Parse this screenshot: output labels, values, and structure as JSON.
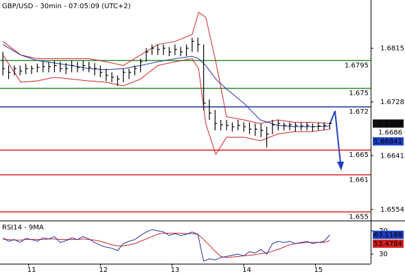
{
  "chart_data": {
    "type": "ohlc",
    "title": "GBP/USD - 30min - 07:05:09 (UTC+2)",
    "bar_color": "#000000",
    "x": [
      10.64,
      10.72,
      10.8,
      10.88,
      10.96,
      11.04,
      11.12,
      11.2,
      11.28,
      11.36,
      11.44,
      11.52,
      11.6,
      11.68,
      11.76,
      11.84,
      11.92,
      12.0,
      12.08,
      12.16,
      12.24,
      12.32,
      12.4,
      12.48,
      12.56,
      12.64,
      12.72,
      12.8,
      12.88,
      12.96,
      13.04,
      13.12,
      13.2,
      13.28,
      13.36,
      13.44,
      13.52,
      13.6,
      13.68,
      13.76,
      13.84,
      13.92,
      14.0,
      14.08,
      14.16,
      14.24,
      14.32,
      14.4,
      14.48,
      14.56,
      14.64,
      14.72,
      14.8,
      14.88,
      14.96,
      15.04,
      15.12,
      15.2
    ],
    "high": [
      1.6809,
      1.6787,
      1.6787,
      1.6787,
      1.679,
      1.6787,
      1.679,
      1.6793,
      1.6793,
      1.6795,
      1.6793,
      1.6791,
      1.6795,
      1.6793,
      1.6795,
      1.6793,
      1.6791,
      1.6787,
      1.6782,
      1.6776,
      1.6771,
      1.6782,
      1.6782,
      1.6787,
      1.6798,
      1.6815,
      1.6821,
      1.6821,
      1.6821,
      1.6817,
      1.6821,
      1.6817,
      1.6821,
      1.6832,
      1.6832,
      1.6821,
      1.6732,
      1.6715,
      1.6699,
      1.6699,
      1.6695,
      1.6699,
      1.6695,
      1.6695,
      1.6693,
      1.6693,
      1.6688,
      1.6699,
      1.6699,
      1.6695,
      1.6695,
      1.6695,
      1.6695,
      1.6695,
      1.6693,
      1.6695,
      1.6695,
      1.6695
    ],
    "low": [
      1.6771,
      1.6765,
      1.6771,
      1.6771,
      1.6773,
      1.6773,
      1.6776,
      1.6776,
      1.6776,
      1.6776,
      1.6776,
      1.6773,
      1.6776,
      1.6776,
      1.6778,
      1.6776,
      1.6771,
      1.6768,
      1.6762,
      1.676,
      1.6754,
      1.676,
      1.6765,
      1.6771,
      1.6776,
      1.6793,
      1.6804,
      1.6804,
      1.6804,
      1.6802,
      1.6804,
      1.6802,
      1.6802,
      1.6809,
      1.6809,
      1.6715,
      1.6699,
      1.6682,
      1.6682,
      1.6682,
      1.668,
      1.6682,
      1.668,
      1.6676,
      1.6673,
      1.6671,
      1.6654,
      1.6676,
      1.6682,
      1.6682,
      1.6682,
      1.668,
      1.6682,
      1.6682,
      1.668,
      1.6682,
      1.6682,
      1.6684
    ],
    "close": [
      1.6782,
      1.6776,
      1.6782,
      1.6778,
      1.6782,
      1.6782,
      1.6784,
      1.6785,
      1.6785,
      1.6787,
      1.6782,
      1.6782,
      1.6787,
      1.6784,
      1.6787,
      1.6784,
      1.6782,
      1.6776,
      1.6771,
      1.6768,
      1.6765,
      1.6776,
      1.6776,
      1.6782,
      1.6793,
      1.6809,
      1.6815,
      1.6813,
      1.6815,
      1.6809,
      1.6813,
      1.6809,
      1.6815,
      1.6826,
      1.6821,
      1.6726,
      1.671,
      1.6693,
      1.6691,
      1.669,
      1.6688,
      1.669,
      1.6688,
      1.6684,
      1.6684,
      1.6682,
      1.6676,
      1.6691,
      1.6693,
      1.669,
      1.6691,
      1.669,
      1.6689,
      1.669,
      1.6688,
      1.6689,
      1.669,
      1.6693
    ],
    "xlim": [
      10.6,
      15.77
    ],
    "xticks": [
      11,
      12,
      13,
      14,
      15
    ],
    "ylim": [
      1.6536,
      1.6893
    ],
    "yticks": [
      1.6554,
      1.6641,
      1.6728,
      1.6815
    ],
    "overlay": {
      "x": [
        10.64,
        10.89,
        11.12,
        11.36,
        11.6,
        11.84,
        12.08,
        12.32,
        12.56,
        12.8,
        13.04,
        13.28,
        13.37,
        13.47,
        13.61,
        13.76,
        14,
        14.23,
        14.47,
        14.71,
        14.95,
        15.2
      ],
      "upper": [
        1.6826,
        1.6804,
        1.6798,
        1.6798,
        1.6798,
        1.6798,
        1.6793,
        1.6787,
        1.6804,
        1.6821,
        1.6826,
        1.6837,
        1.6873,
        1.6865,
        1.6793,
        1.6704,
        1.6699,
        1.6693,
        1.6699,
        1.6695,
        1.6695,
        1.6693
      ],
      "lower": [
        1.6804,
        1.676,
        1.6762,
        1.6768,
        1.6765,
        1.6762,
        1.676,
        1.6754,
        1.6765,
        1.6787,
        1.6793,
        1.6798,
        1.6782,
        1.6693,
        1.6643,
        1.6671,
        1.6671,
        1.6665,
        1.6676,
        1.668,
        1.668,
        1.6684
      ],
      "band_color": "#cc2222",
      "average": [
        1.6821,
        1.6804,
        1.6795,
        1.6791,
        1.6787,
        1.6782,
        1.678,
        1.6782,
        1.6787,
        1.6793,
        1.6798,
        1.6802,
        1.6798,
        1.6787,
        1.6765,
        1.6749,
        1.6726,
        1.6699,
        1.669,
        1.6688,
        1.6688,
        1.6689
      ],
      "average_color": "#1f2fa0"
    },
    "levels": [
      {
        "value": 1.6795,
        "color": "#2e8b2e"
      },
      {
        "value": 1.675,
        "color": "#2e8b2e"
      },
      {
        "value": 1.672,
        "color": "#1f2fa0"
      },
      {
        "value": 1.665,
        "color": "#d42020"
      },
      {
        "value": 1.661,
        "color": "#d42020"
      },
      {
        "value": 1.655,
        "color": "#d42020"
      }
    ],
    "last_prices": [
      {
        "value": 1.6693,
        "background": "#111111",
        "text_color": "#ffffff"
      },
      {
        "value": 1.6686,
        "background": "#ffffff",
        "text_color": "#d42020"
      },
      {
        "value": 1.66841,
        "background": "#1f3fbf",
        "text_color": "#ffffff"
      }
    ],
    "rsi": {
      "title": "RSI14 - 9MA",
      "values": [
        58,
        52,
        55,
        50,
        57,
        55,
        52,
        58,
        56,
        60,
        50,
        53,
        58,
        55,
        60,
        56,
        50,
        45,
        42,
        40,
        36,
        48,
        52,
        55,
        62,
        68,
        72,
        70,
        68,
        62,
        65,
        62,
        64,
        68,
        64,
        18,
        22,
        20,
        24,
        26,
        28,
        30,
        27,
        34,
        32,
        38,
        30,
        48,
        52,
        50,
        52,
        48,
        50,
        52,
        48,
        50,
        52,
        63
      ],
      "color": "#1f2fa0",
      "average": [
        55,
        55,
        54,
        54,
        55,
        55,
        55,
        55,
        56,
        56,
        55,
        55,
        55,
        55,
        56,
        55,
        54,
        52,
        49,
        46,
        44,
        44,
        46,
        48,
        52,
        56,
        60,
        64,
        66,
        66,
        66,
        66,
        65,
        65,
        64,
        55,
        45,
        35,
        26,
        24,
        25,
        26,
        27,
        28,
        29,
        31,
        32,
        35,
        38,
        42,
        46,
        48,
        49,
        50,
        50,
        50,
        50,
        53
      ],
      "average_color": "#cc2222",
      "ylim": [
        13.5,
        84
      ],
      "yticks": [
        30,
        70
      ],
      "last_values": [
        {
          "value": 63.1188,
          "background": "#1f3fbf",
          "text_color": "#ffffff"
        },
        {
          "value": 53.4784,
          "background": "#d42020",
          "text_color": "#ffffff"
        }
      ]
    }
  }
}
